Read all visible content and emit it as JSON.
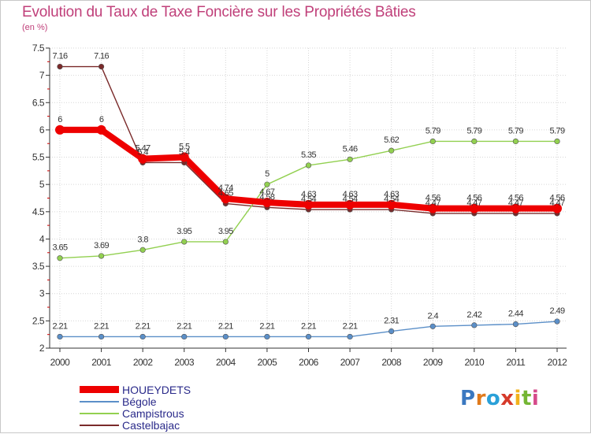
{
  "header": {
    "title": "Evolution du Taux de Taxe Foncière sur les Propriétés Bâties",
    "subtitle": "(en %)"
  },
  "logo": {
    "letters": [
      "P",
      "r",
      "o",
      "x",
      "i",
      "t",
      "i"
    ],
    "colors": [
      "#3a78c0",
      "#e07a1c",
      "#2aa0d8",
      "#d63a2a",
      "#f2b21c",
      "#74b634",
      "#d64a8a"
    ]
  },
  "chart_data": {
    "type": "line",
    "title": "Evolution du Taux de Taxe Foncière sur les Propriétés Bâties",
    "ylabel": "(en %)",
    "xlabel": "",
    "categories": [
      "2000",
      "2001",
      "2002",
      "2003",
      "2004",
      "2005",
      "2006",
      "2007",
      "2008",
      "2009",
      "2010",
      "2011",
      "2012"
    ],
    "ylim": [
      2,
      7.5
    ],
    "yticks": [
      "2",
      "2.5",
      "3",
      "3.5",
      "4",
      "4.5",
      "5",
      "5.5",
      "6",
      "6.5",
      "7",
      "7.5"
    ],
    "series": [
      {
        "name": "Castelbajac",
        "color": "#7a2a2a",
        "values": [
          7.16,
          7.16,
          5.4,
          5.4,
          4.65,
          4.58,
          4.54,
          4.54,
          4.54,
          4.47,
          4.47,
          4.47,
          4.47
        ],
        "labels": [
          "7.16",
          "7.16",
          "5.4",
          "5.4",
          "4.65",
          "4.58",
          "4.54",
          "4.54",
          "4.54",
          "4.47",
          "4.47",
          "4.47",
          "4.47"
        ]
      },
      {
        "name": "Campistrous",
        "color": "#92d050",
        "values": [
          3.65,
          3.69,
          3.8,
          3.95,
          3.95,
          5,
          5.35,
          5.46,
          5.62,
          5.79,
          5.79,
          5.79,
          5.79
        ],
        "labels": [
          "3.65",
          "3.69",
          "3.8",
          "3.95",
          "3.95",
          "5",
          "5.35",
          "5.46",
          "5.62",
          "5.79",
          "5.79",
          "5.79",
          "5.79"
        ]
      },
      {
        "name": "Bégole",
        "color": "#5b8fc8",
        "values": [
          2.21,
          2.21,
          2.21,
          2.21,
          2.21,
          2.21,
          2.21,
          2.21,
          2.31,
          2.4,
          2.42,
          2.44,
          2.49
        ],
        "labels": [
          "2.21",
          "2.21",
          "2.21",
          "2.21",
          "2.21",
          "2.21",
          "2.21",
          "2.21",
          "2.31",
          "2.4",
          "2.42",
          "2.44",
          "2.49"
        ]
      },
      {
        "name": "HOUEYDETS",
        "color": "#ee0000",
        "values": [
          6,
          6,
          5.47,
          5.5,
          4.74,
          4.67,
          4.63,
          4.63,
          4.63,
          4.56,
          4.56,
          4.56,
          4.56
        ],
        "labels": [
          "6",
          "6",
          "5.47",
          "5.5",
          "4.74",
          "4.67",
          "4.63",
          "4.63",
          "4.63",
          "4.56",
          "4.56",
          "4.56",
          "4.56"
        ]
      }
    ],
    "legend": {
      "position": "bottom-left",
      "entries": [
        {
          "name": "HOUEYDETS",
          "color": "#ee0000",
          "text_color": "#2a2a8a"
        },
        {
          "name": "Bégole",
          "color": "#5b8fc8",
          "text_color": "#2a2a8a"
        },
        {
          "name": "Campistrous",
          "color": "#92d050",
          "text_color": "#2a2a8a"
        },
        {
          "name": "Castelbajac",
          "color": "#7a2a2a",
          "text_color": "#2a2a8a"
        }
      ]
    }
  }
}
